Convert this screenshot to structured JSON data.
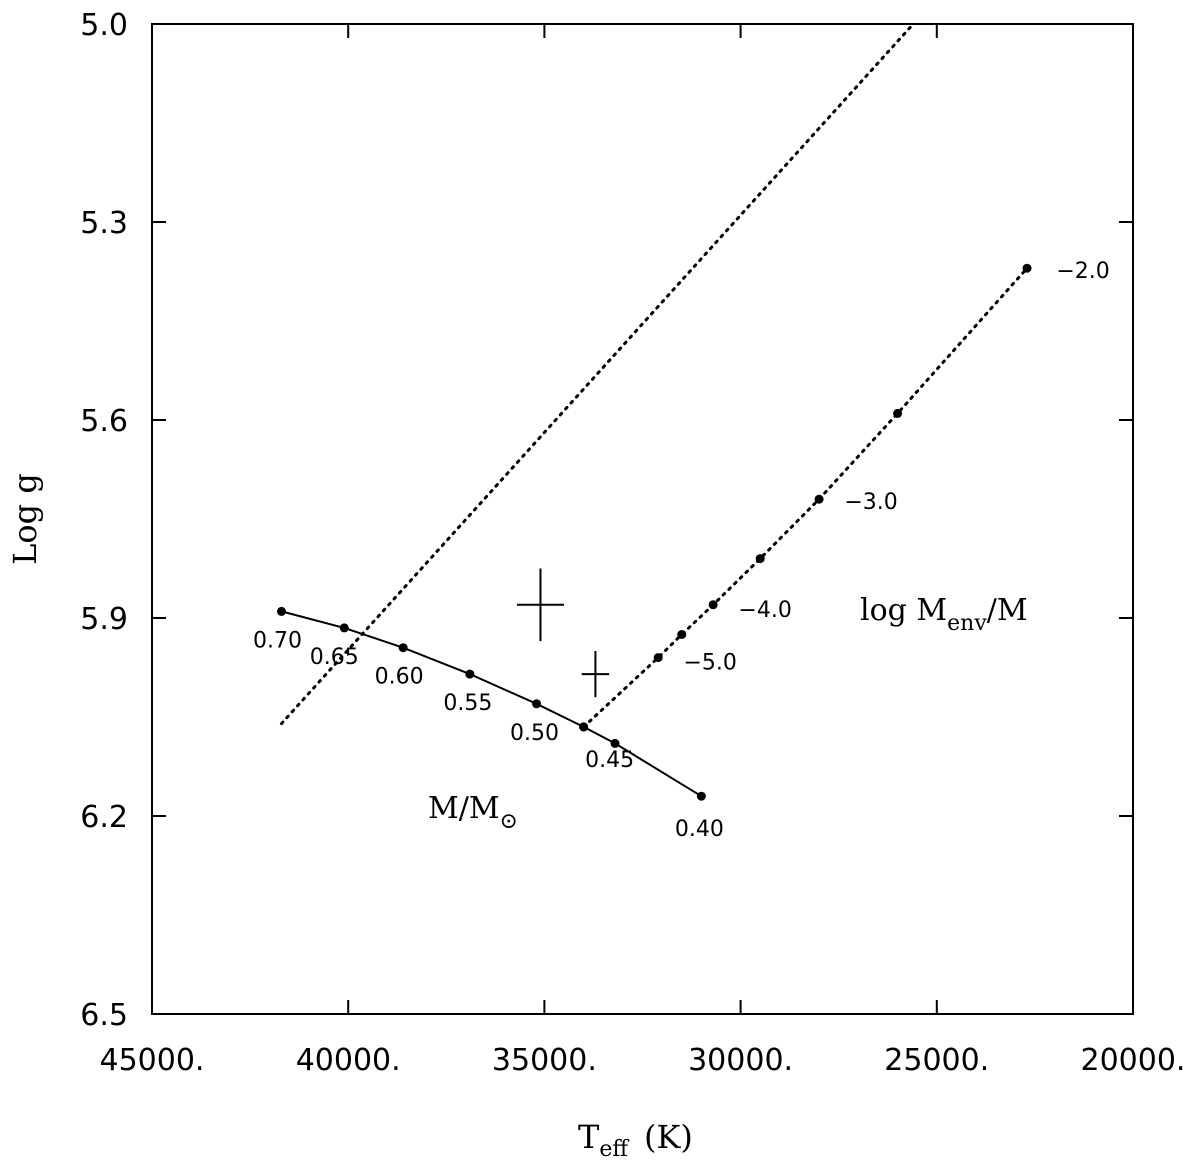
{
  "chart_data": {
    "type": "line",
    "xlabel": "T",
    "xlabel_sub": "eff",
    "xlabel_unit": "(K)",
    "ylabel": "Log g",
    "xlim": [
      45000,
      20000
    ],
    "ylim": [
      5.0,
      6.5
    ],
    "y_inverted": true,
    "x_reversed": true,
    "x_ticks": [
      45000,
      40000,
      35000,
      30000,
      25000,
      20000
    ],
    "x_tick_labels": [
      "45000.",
      "40000.",
      "35000.",
      "30000.",
      "25000.",
      "20000."
    ],
    "y_ticks": [
      5.0,
      5.3,
      5.6,
      5.9,
      6.2,
      6.5
    ],
    "y_tick_labels": [
      "5.0",
      "5.3",
      "5.6",
      "5.9",
      "6.2",
      "6.5"
    ],
    "grid": false,
    "series": [
      {
        "style": "solid",
        "points": [
          {
            "x": 41700,
            "y": 5.89,
            "label": "0.70"
          },
          {
            "x": 40100,
            "y": 5.915,
            "label": "0.65"
          },
          {
            "x": 38600,
            "y": 5.945,
            "label": "0.60"
          },
          {
            "x": 36900,
            "y": 5.985,
            "label": "0.55"
          },
          {
            "x": 35200,
            "y": 6.03,
            "label": "0.50"
          },
          {
            "x": 34000,
            "y": 6.065,
            "label": "0.45"
          },
          {
            "x": 33200,
            "y": 6.09,
            "label": ""
          },
          {
            "x": 31000,
            "y": 6.17,
            "label": "0.40"
          }
        ]
      },
      {
        "style": "dotted",
        "points": [
          {
            "x": 34000,
            "y": 6.065,
            "label": ""
          },
          {
            "x": 32100,
            "y": 5.96,
            "label": "−5.0"
          },
          {
            "x": 31500,
            "y": 5.925,
            "label": ""
          },
          {
            "x": 30700,
            "y": 5.88,
            "label": "−4.0"
          },
          {
            "x": 29500,
            "y": 5.81,
            "label": ""
          },
          {
            "x": 28000,
            "y": 5.72,
            "label": "−3.0"
          },
          {
            "x": 26000,
            "y": 5.59,
            "label": ""
          },
          {
            "x": 22700,
            "y": 5.37,
            "label": "−2.0"
          }
        ]
      },
      {
        "style": "dotted",
        "points": [
          {
            "x": 41700,
            "y": 6.06,
            "label": ""
          },
          {
            "x": 25600,
            "y": 5.0,
            "label": ""
          }
        ]
      }
    ],
    "error_bars": [
      {
        "x": 35100,
        "y": 5.88,
        "x_err": 600,
        "y_err": 0.055
      },
      {
        "x": 33700,
        "y": 5.985,
        "x_err": 350,
        "y_err": 0.035
      }
    ],
    "annotations": {
      "mass_label": "M/M",
      "mass_sun_symbol": "⊙",
      "env_label_prefix": "log  M",
      "env_label_sub": "env",
      "env_label_suffix": "/M"
    }
  }
}
